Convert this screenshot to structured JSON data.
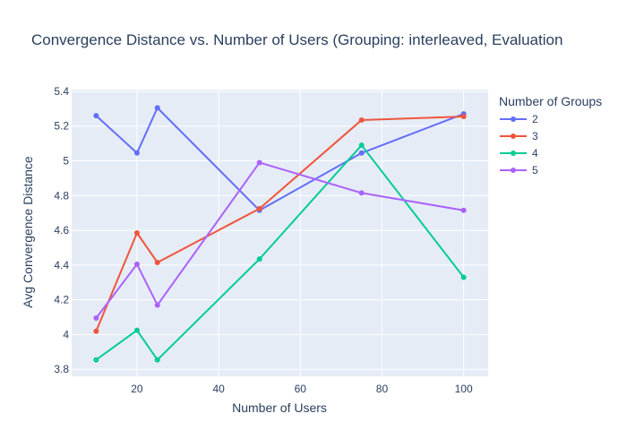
{
  "chart_data": {
    "type": "line",
    "title": "Convergence Distance vs. Number of Users (Grouping: interleaved, Evaluation",
    "xlabel": "Number of Users",
    "ylabel": "Avg Convergence Distance",
    "xlim": [
      4,
      106
    ],
    "ylim": [
      3.76,
      5.41
    ],
    "xticks": [
      20,
      40,
      60,
      80,
      100
    ],
    "yticks": [
      3.8,
      4,
      4.2,
      4.4,
      4.6,
      4.8,
      5,
      5.2,
      5.4
    ],
    "ytick_labels": [
      "3.8",
      "4",
      "4.2",
      "4.4",
      "4.6",
      "4.8",
      "5",
      "5.2",
      "5.4"
    ],
    "grid": true,
    "legend": {
      "title": "Number of Groups",
      "position": "right"
    },
    "x": [
      10,
      20,
      25,
      50,
      75,
      100
    ],
    "series": [
      {
        "name": "2",
        "color": "#636efa",
        "values": [
          5.26,
          5.045,
          5.305,
          4.715,
          5.045,
          5.27
        ]
      },
      {
        "name": "3",
        "color": "#ef553b",
        "values": [
          4.02,
          4.585,
          4.415,
          4.725,
          5.235,
          5.255
        ]
      },
      {
        "name": "4",
        "color": "#00cc96",
        "values": [
          3.855,
          4.025,
          3.855,
          4.435,
          5.09,
          4.33
        ]
      },
      {
        "name": "5",
        "color": "#ab63fa",
        "values": [
          4.095,
          4.405,
          4.17,
          4.99,
          4.815,
          4.715
        ]
      }
    ]
  }
}
